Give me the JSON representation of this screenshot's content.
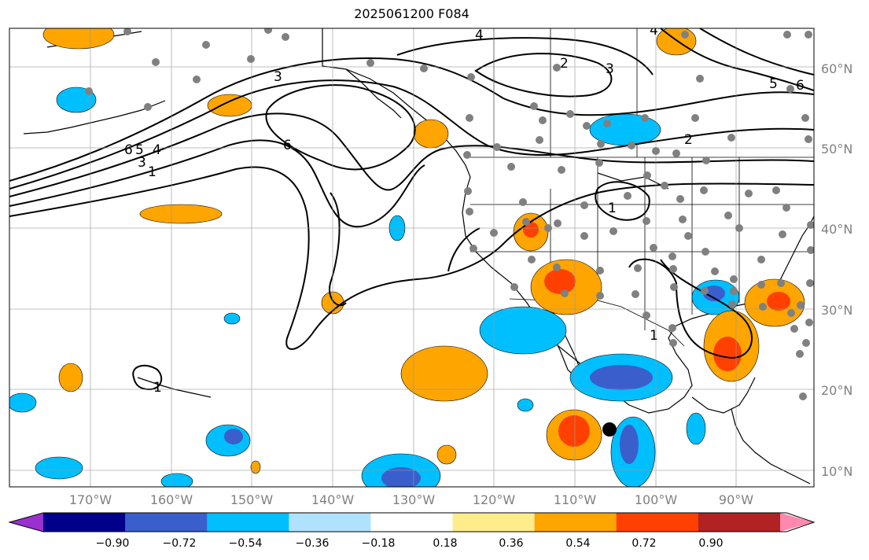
{
  "title": "2025061200 F084",
  "lat_labels": [
    "60°N",
    "50°N",
    "40°N",
    "30°N",
    "20°N",
    "10°N"
  ],
  "lon_labels": [
    "170°W",
    "160°W",
    "150°W",
    "140°W",
    "130°W",
    "120°W",
    "110°W",
    "100°W",
    "90°W"
  ],
  "contour_labels": [
    "4",
    "2",
    "3",
    "3",
    "5",
    "6",
    "6",
    "5",
    "4",
    "3",
    "1",
    "6",
    "2",
    "1",
    "1",
    "1",
    "4"
  ],
  "colorbar": {
    "colors": [
      "#9b30d0",
      "#00008b",
      "#3a5fcd",
      "#00bfff",
      "#b0e2ff",
      "#ffffff",
      "#ffec8b",
      "#ffa500",
      "#ff4000",
      "#b22222",
      "#ff88b0"
    ],
    "tick_labels": [
      "−0.90",
      "−0.72",
      "−0.54",
      "−0.36",
      "−0.18",
      "0.18",
      "0.36",
      "0.54",
      "0.72",
      "0.90"
    ]
  }
}
